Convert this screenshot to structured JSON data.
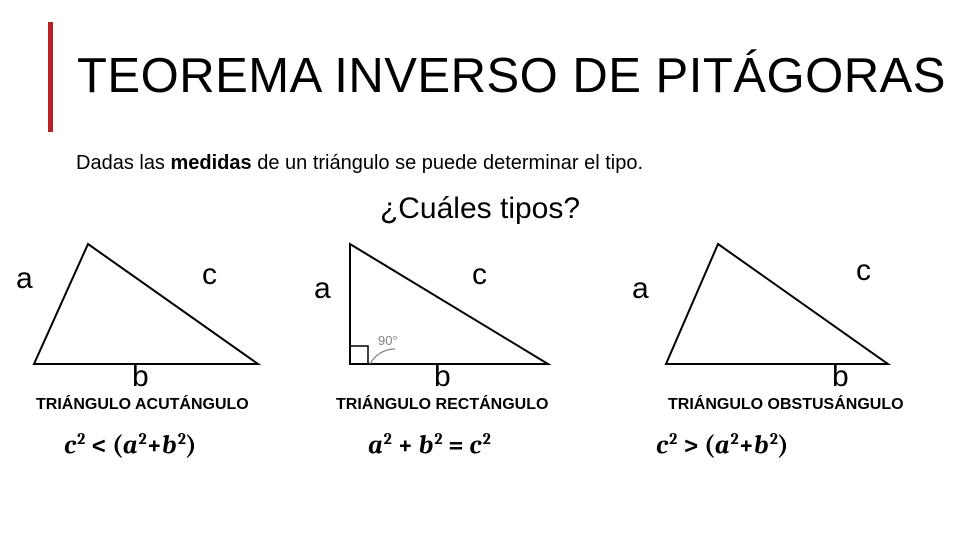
{
  "title": "TEOREMA INVERSO DE PITÁGORAS",
  "subtitle_pre": "Dadas las ",
  "subtitle_bold": "medidas",
  "subtitle_post": " de un triángulo se puede determinar el tipo.",
  "question": "¿Cuáles tipos?",
  "accent_color": "#b72025",
  "triangles": {
    "acute": {
      "caption": "TRIÁNGULO ACUTÁNGULO",
      "a": "a",
      "b": "b",
      "c": "c",
      "stroke": "#000000",
      "stroke_width": 2,
      "formula_html": "<span>c</span><sup>2</sup> <span class='op'>&lt; (</span><span>a</span><sup>2</sup><span class='op'>+</span><span>b</span><sup>2</sup><span class='op'>)</span>"
    },
    "right": {
      "caption": "TRIÁNGULO RECTÁNGULO",
      "a": "a",
      "b": "b",
      "c": "c",
      "angle_label": "90°",
      "stroke": "#000000",
      "stroke_width": 2,
      "angle_text_color": "#808080",
      "formula_html": "<span>a</span><sup>2</sup> <span class='op'>+</span> <span>b</span><sup>2</sup> <span class='op'>=</span> <span>c</span><sup>2</sup>"
    },
    "obtuse": {
      "caption": "TRIÁNGULO OBSTUSÁNGULO",
      "a": "a",
      "b": "b",
      "c": "c",
      "stroke": "#000000",
      "stroke_width": 2,
      "formula_html": "<span>c</span><sup>2</sup> <span class='op'>&gt; (</span><span>a</span><sup>2</sup><span class='op'>+</span><span>b</span><sup>2</sup><span class='op'>)</span>"
    }
  }
}
